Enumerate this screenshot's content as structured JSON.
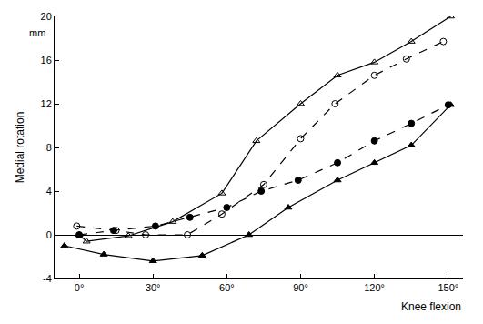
{
  "chart_data": {
    "type": "line",
    "x_label": "Knee flexion",
    "y_label": "Medial rotation",
    "annotations": [
      "mm"
    ],
    "xlim": [
      -10,
      156
    ],
    "ylim": [
      -4,
      20
    ],
    "xticks": [
      {
        "value": 0,
        "label": "0°"
      },
      {
        "value": 30,
        "label": "30°"
      },
      {
        "value": 60,
        "label": "60°"
      },
      {
        "value": 90,
        "label": "90°"
      },
      {
        "value": 120,
        "label": "120°"
      },
      {
        "value": 150,
        "label": "150°"
      }
    ],
    "yticks": [
      -4,
      0,
      4,
      8,
      12,
      16,
      20
    ],
    "grid": false,
    "series": [
      {
        "color": "#000000",
        "marker": "triangle-up-open",
        "line_style": "solid",
        "x": [
          0,
          3,
          20,
          38,
          58,
          72,
          90,
          105,
          120,
          135,
          151
        ],
        "values": [
          0,
          -0.6,
          -0.1,
          1.2,
          3.8,
          8.6,
          12,
          14.6,
          15.8,
          17.7,
          20
        ]
      },
      {
        "color": "#000000",
        "marker": "circle-open",
        "line_style": "dash",
        "x": [
          -1,
          15,
          27,
          44,
          58,
          75,
          90,
          104,
          120,
          133,
          148
        ],
        "values": [
          0.8,
          0.4,
          0,
          0,
          1.9,
          4.6,
          8.8,
          12,
          14.6,
          16.1,
          17.7
        ]
      },
      {
        "color": "#000000",
        "marker": "circle",
        "line_style": "dash",
        "x": [
          0,
          14,
          31,
          45,
          60,
          74,
          89,
          105,
          120,
          135,
          150
        ],
        "values": [
          0,
          0.4,
          0.8,
          1.6,
          2.5,
          4,
          5,
          6.6,
          8.6,
          10.2,
          11.9
        ]
      },
      {
        "color": "#000000",
        "marker": "triangle-up",
        "line_style": "solid",
        "x": [
          -6,
          10,
          30,
          50,
          69,
          85,
          105,
          120,
          135,
          151
        ],
        "values": [
          -1,
          -1.8,
          -2.4,
          -1.9,
          0,
          2.5,
          5,
          6.6,
          8.2,
          11.9
        ]
      }
    ]
  }
}
